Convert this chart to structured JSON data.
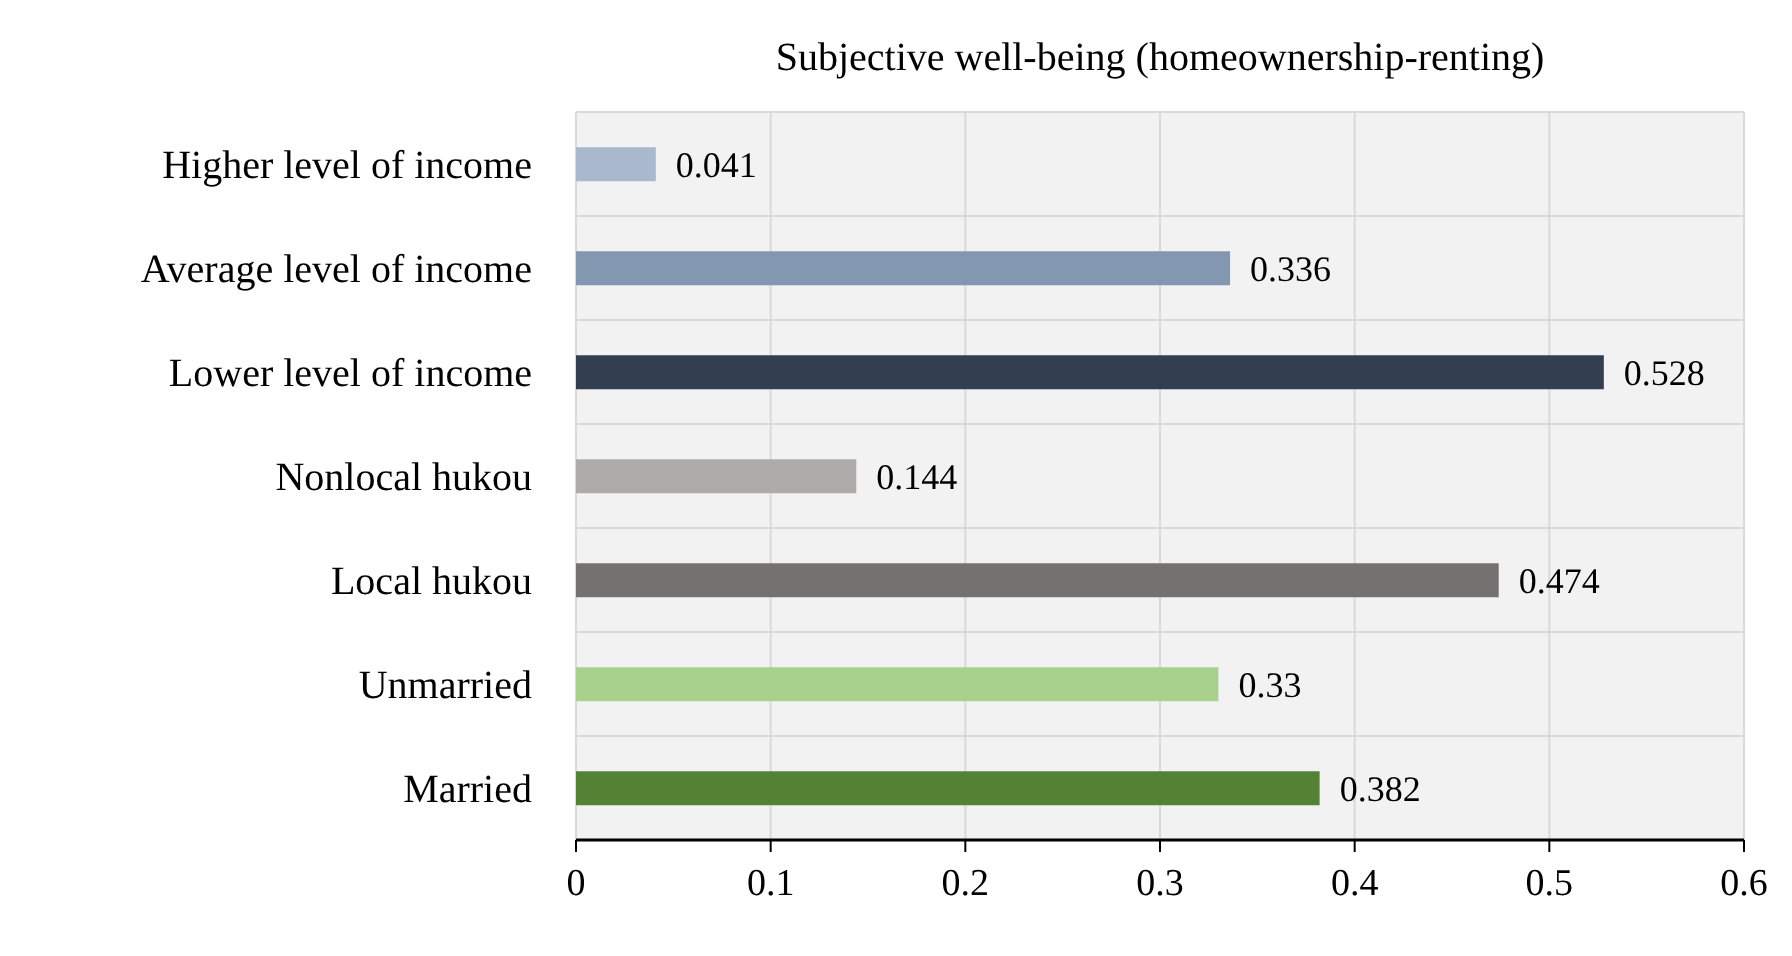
{
  "chart_data": {
    "type": "bar",
    "orientation": "horizontal",
    "title": "Subjective well-being  (homeownership-renting)",
    "categories": [
      "Higher level of income",
      "Average level of income",
      "Lower level of income",
      "Nonlocal hukou",
      "Local hukou",
      "Unmarried",
      "Married"
    ],
    "values": [
      0.041,
      0.336,
      0.528,
      0.144,
      0.474,
      0.33,
      0.382
    ],
    "colors": [
      "#a9b8cc",
      "#8497b0",
      "#333f50",
      "#afabab",
      "#767171",
      "#a9d18e",
      "#548235"
    ],
    "xlim": [
      0,
      0.6
    ],
    "xticks": [
      0,
      0.1,
      0.2,
      0.3,
      0.4,
      0.5,
      0.6
    ],
    "grid": true,
    "data_labels": true
  }
}
